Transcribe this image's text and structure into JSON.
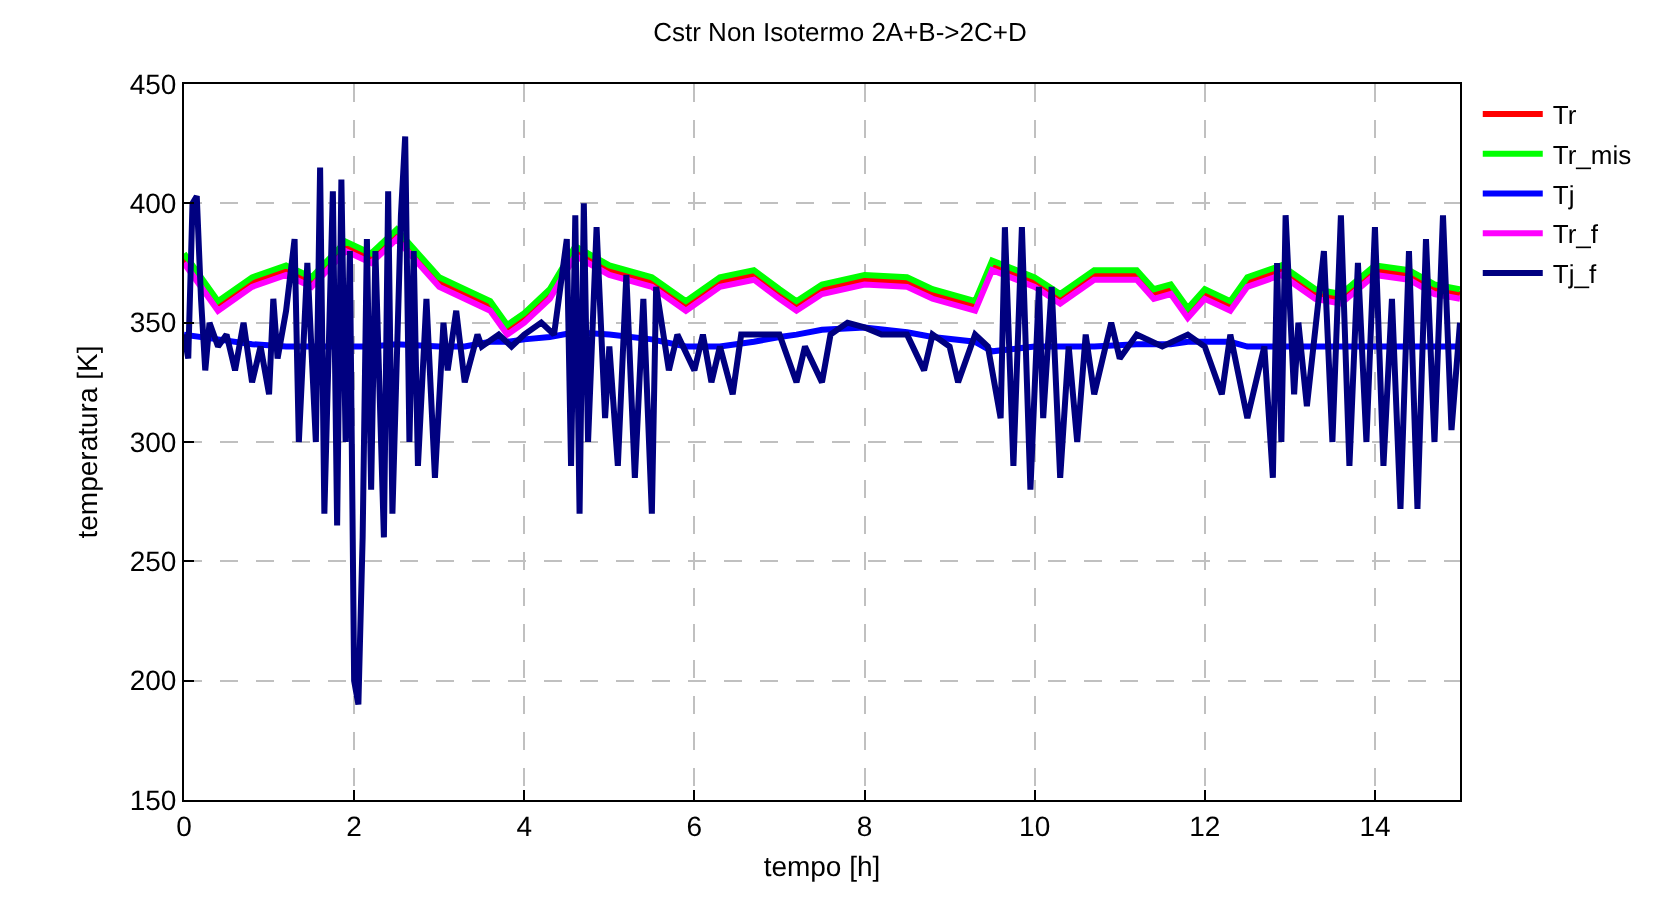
{
  "chart_data": {
    "type": "line",
    "title": "Cstr Non Isotermo 2A+B->2C+D",
    "xlabel": "tempo [h]",
    "ylabel": "temperatura [K]",
    "x": [
      0,
      0.4,
      0.8,
      1.2,
      1.5,
      1.9,
      2.2,
      2.5,
      3,
      3.3,
      3.6,
      3.8,
      4,
      4.3,
      4.6,
      5,
      5.5,
      5.9,
      6.3,
      6.7,
      7,
      7.2,
      7.5,
      8,
      8.5,
      8.8,
      9.3,
      9.5,
      10,
      10.3,
      10.7,
      11.2,
      11.4,
      11.6,
      11.8,
      12,
      12.3,
      12.5,
      12.9,
      13.3,
      13.6,
      14,
      14.4,
      14.7,
      15
    ],
    "series": [
      {
        "name": "Tr",
        "color": "#ff0000",
        "values": [
          377,
          357,
          367,
          372,
          367,
          382,
          377,
          387,
          367,
          362,
          357,
          347,
          352,
          362,
          380,
          372,
          367,
          357,
          367,
          370,
          362,
          357,
          364,
          368,
          367,
          362,
          357,
          374,
          367,
          360,
          370,
          370,
          362,
          364,
          354,
          362,
          357,
          367,
          372,
          362,
          360,
          372,
          370,
          364,
          362
        ]
      },
      {
        "name": "Tr_mis",
        "color": "#00ff00",
        "values": [
          379,
          359,
          369,
          374,
          369,
          384,
          379,
          389,
          369,
          364,
          359,
          349,
          354,
          364,
          382,
          374,
          369,
          359,
          369,
          372,
          364,
          359,
          366,
          370,
          369,
          364,
          359,
          376,
          369,
          362,
          372,
          372,
          364,
          366,
          356,
          364,
          359,
          369,
          374,
          364,
          362,
          374,
          372,
          366,
          364
        ]
      },
      {
        "name": "Tj",
        "color": "#0000ff",
        "values": [
          345,
          343,
          341,
          340,
          340,
          340,
          340,
          341,
          340,
          340,
          342,
          342,
          343,
          344,
          346,
          345,
          343,
          340,
          340,
          342,
          344,
          345,
          347,
          348,
          346,
          344,
          342,
          338,
          340,
          340,
          340,
          341,
          341,
          341,
          342,
          342,
          342,
          340,
          340,
          340,
          340,
          340,
          340,
          340,
          340
        ]
      },
      {
        "name": "Tr_f",
        "color": "#ff00ff",
        "values": [
          375,
          355,
          365,
          370,
          365,
          380,
          375,
          385,
          365,
          360,
          355,
          345,
          350,
          360,
          378,
          370,
          365,
          355,
          365,
          368,
          360,
          355,
          362,
          366,
          365,
          360,
          355,
          372,
          365,
          358,
          368,
          368,
          360,
          362,
          352,
          360,
          355,
          365,
          370,
          360,
          358,
          370,
          368,
          362,
          360
        ]
      },
      {
        "name": "Tj_f",
        "color": "#000080",
        "x": [
          0,
          0.05,
          0.1,
          0.15,
          0.2,
          0.25,
          0.3,
          0.4,
          0.5,
          0.6,
          0.7,
          0.8,
          0.9,
          1.0,
          1.05,
          1.1,
          1.2,
          1.3,
          1.35,
          1.45,
          1.55,
          1.6,
          1.65,
          1.75,
          1.8,
          1.85,
          1.9,
          1.95,
          2.0,
          2.05,
          2.1,
          2.15,
          2.2,
          2.25,
          2.35,
          2.4,
          2.45,
          2.55,
          2.6,
          2.65,
          2.7,
          2.75,
          2.85,
          2.95,
          3.05,
          3.1,
          3.2,
          3.3,
          3.45,
          3.5,
          3.7,
          3.85,
          4.0,
          4.2,
          4.35,
          4.5,
          4.55,
          4.6,
          4.65,
          4.7,
          4.75,
          4.85,
          4.95,
          5.0,
          5.1,
          5.2,
          5.3,
          5.4,
          5.5,
          5.55,
          5.7,
          5.8,
          6.0,
          6.1,
          6.2,
          6.3,
          6.45,
          6.55,
          6.8,
          7.0,
          7.2,
          7.3,
          7.5,
          7.6,
          7.8,
          8.0,
          8.2,
          8.5,
          8.7,
          8.8,
          9.0,
          9.1,
          9.3,
          9.45,
          9.6,
          9.65,
          9.75,
          9.85,
          9.95,
          10.05,
          10.1,
          10.2,
          10.3,
          10.4,
          10.5,
          10.6,
          10.7,
          10.9,
          11.0,
          11.2,
          11.5,
          11.8,
          12.0,
          12.2,
          12.3,
          12.5,
          12.7,
          12.8,
          12.85,
          12.9,
          12.95,
          13.05,
          13.1,
          13.2,
          13.4,
          13.5,
          13.6,
          13.7,
          13.8,
          13.9,
          14.0,
          14.1,
          14.2,
          14.3,
          14.4,
          14.5,
          14.6,
          14.7,
          14.8,
          14.9,
          15.0
        ],
        "values": [
          345,
          335,
          400,
          403,
          360,
          330,
          350,
          340,
          345,
          330,
          350,
          325,
          340,
          320,
          360,
          335,
          355,
          385,
          300,
          375,
          300,
          415,
          270,
          405,
          265,
          410,
          300,
          380,
          200,
          190,
          260,
          385,
          280,
          380,
          260,
          405,
          270,
          395,
          428,
          300,
          380,
          290,
          360,
          285,
          350,
          330,
          355,
          325,
          345,
          340,
          345,
          340,
          345,
          350,
          345,
          385,
          290,
          395,
          270,
          400,
          300,
          390,
          310,
          340,
          290,
          370,
          285,
          360,
          270,
          365,
          330,
          345,
          330,
          345,
          325,
          340,
          320,
          345,
          345,
          345,
          325,
          340,
          325,
          345,
          350,
          348,
          345,
          345,
          330,
          345,
          340,
          325,
          345,
          340,
          310,
          390,
          290,
          390,
          280,
          365,
          310,
          365,
          285,
          340,
          300,
          345,
          320,
          350,
          335,
          345,
          340,
          345,
          340,
          320,
          345,
          310,
          340,
          285,
          375,
          300,
          395,
          320,
          350,
          315,
          380,
          300,
          395,
          290,
          375,
          300,
          390,
          290,
          360,
          272,
          380,
          272,
          385,
          300,
          395,
          305,
          350
        ]
      }
    ],
    "xlim": [
      0,
      15
    ],
    "xticks": [
      0,
      2,
      4,
      6,
      8,
      10,
      12,
      14
    ],
    "ylim": [
      150,
      450
    ],
    "yticks": [
      150,
      200,
      250,
      300,
      350,
      400,
      450
    ],
    "grid": true,
    "legend": "top right",
    "marker": "none",
    "line_style": "solid"
  }
}
